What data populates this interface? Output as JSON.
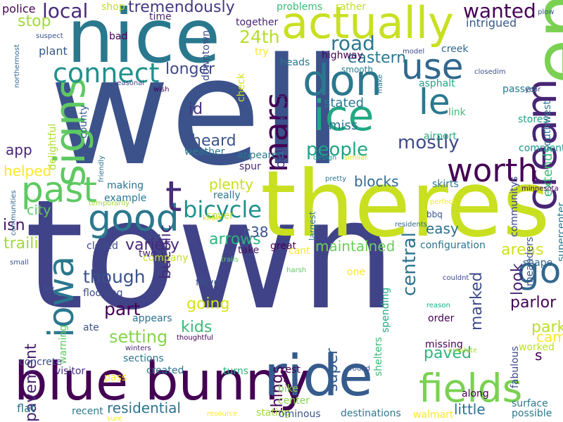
{
  "background": "#ffffff",
  "palette": [
    "#440154",
    "#472d7b",
    "#3b528b",
    "#2c728e",
    "#21918c",
    "#28ae80",
    "#5ec962",
    "#addc30",
    "#fde725"
  ],
  "words": [
    {
      "text": "well",
      "color": "#3b528b"
    },
    {
      "text": "town",
      "color": "#404387"
    },
    {
      "text": "theres",
      "color": "#c8e020"
    },
    {
      "text": "nice",
      "color": "#2a788e"
    },
    {
      "text": "end",
      "color": "#7ad151"
    },
    {
      "text": "blue bunny",
      "color": "#440154"
    },
    {
      "text": "ride",
      "color": "#365c8d"
    },
    {
      "text": "actually",
      "color": "#c8e020"
    },
    {
      "text": "don",
      "color": "#2a788e"
    },
    {
      "text": "ice",
      "color": "#22a884"
    },
    {
      "text": "cream",
      "color": "#482475"
    },
    {
      "text": "signs",
      "color": "#5ec962"
    },
    {
      "text": "fields",
      "color": "#7ad151"
    },
    {
      "text": "past",
      "color": "#5ec962"
    },
    {
      "text": "good",
      "color": "#2a788e"
    },
    {
      "text": "use",
      "color": "#31688e"
    },
    {
      "text": "le",
      "color": "#2a788e"
    },
    {
      "text": "go",
      "color": "#31688e"
    },
    {
      "text": "iowa",
      "color": "#2a788e"
    },
    {
      "text": "worth",
      "color": "#440154"
    },
    {
      "text": "mars",
      "color": "#440154"
    },
    {
      "text": "t",
      "color": "#472d7b"
    },
    {
      "text": "connect",
      "color": "#21918c"
    },
    {
      "text": "bicycle",
      "color": "#21918c"
    },
    {
      "text": "mostly",
      "color": "#3e4a89"
    },
    {
      "text": "people",
      "color": "#20a386"
    },
    {
      "text": "wanted",
      "color": "#440154"
    },
    {
      "text": "local",
      "color": "#482878"
    },
    {
      "text": "road",
      "color": "#2a788e"
    },
    {
      "text": "24th",
      "color": "#b5de2b"
    },
    {
      "text": "eastern",
      "color": "#2a788e"
    },
    {
      "text": "stop",
      "color": "#a2da37"
    },
    {
      "text": "longer",
      "color": "#3e4a89"
    },
    {
      "text": "id",
      "color": "#46327e"
    },
    {
      "text": "heard",
      "color": "#3b528b"
    },
    {
      "text": "plenty",
      "color": "#c8e020"
    },
    {
      "text": "arrows",
      "color": "#2db27d"
    },
    {
      "text": "c38",
      "color": "#3b528b"
    },
    {
      "text": "blocks",
      "color": "#31688e"
    },
    {
      "text": "maintained",
      "color": "#6ccd5a"
    },
    {
      "text": "traili",
      "color": "#a2da37"
    },
    {
      "text": "city",
      "color": "#5ec962"
    },
    {
      "text": "isn",
      "color": "#471063"
    },
    {
      "text": "variety",
      "color": "#482878"
    },
    {
      "text": "though",
      "color": "#3b528b"
    },
    {
      "text": "part",
      "color": "#440154"
    },
    {
      "text": "going",
      "color": "#d8e219"
    },
    {
      "text": "setting",
      "color": "#84d44b"
    },
    {
      "text": "kids",
      "color": "#3aba76"
    },
    {
      "text": "tremendously",
      "color": "#443983"
    },
    {
      "text": "central",
      "color": "#2c728e"
    },
    {
      "text": "marked",
      "color": "#3e4a89"
    },
    {
      "text": "look",
      "color": "#482475"
    },
    {
      "text": "parlor",
      "color": "#440154"
    },
    {
      "text": "areas",
      "color": "#d0e11c"
    },
    {
      "text": "paved",
      "color": "#2fb47c"
    },
    {
      "text": "parks",
      "color": "#bddf26"
    },
    {
      "text": "came",
      "color": "#fde725"
    },
    {
      "text": "easy",
      "color": "#2e6f8e"
    },
    {
      "text": "s",
      "color": "#440154"
    },
    {
      "text": "things",
      "color": "#440154"
    },
    {
      "text": "super",
      "color": "#365c8d"
    },
    {
      "text": "pavement",
      "color": "#482475"
    },
    {
      "text": "bucolic",
      "color": "#472c7a"
    },
    {
      "text": "helped",
      "color": "#fde725"
    },
    {
      "text": "app",
      "color": "#482475"
    },
    {
      "text": "ball",
      "color": "#46307e"
    },
    {
      "text": "stated",
      "color": "#2a788e"
    },
    {
      "text": "miss",
      "color": "#2c728e"
    },
    {
      "text": "extends",
      "color": "#3aba76"
    },
    {
      "text": "intrigued",
      "color": "#38598c"
    },
    {
      "text": "plant",
      "color": "#38598c"
    },
    {
      "text": "bad",
      "color": "#440154"
    },
    {
      "text": "time",
      "color": "#482475"
    },
    {
      "text": "police",
      "color": "#440154"
    },
    {
      "text": "shop",
      "color": "#bddf26"
    },
    {
      "text": "together",
      "color": "#482475"
    },
    {
      "text": "problems",
      "color": "#3aba76"
    },
    {
      "text": "rather",
      "color": "#bddf26"
    },
    {
      "text": "heads",
      "color": "#2a788e"
    },
    {
      "text": "highway",
      "color": "#440154"
    },
    {
      "text": "smooth",
      "color": "#287c8e"
    },
    {
      "text": "creek",
      "color": "#31688e"
    },
    {
      "text": "asphalt",
      "color": "#20a486"
    },
    {
      "text": "passes",
      "color": "#2a788e"
    },
    {
      "text": "link",
      "color": "#3aba76"
    },
    {
      "text": "stores",
      "color": "#20a486"
    },
    {
      "text": "airport",
      "color": "#29af7f"
    },
    {
      "text": "comment",
      "color": "#21918c"
    },
    {
      "text": "southwest",
      "color": "#2c728e"
    },
    {
      "text": "downtown",
      "color": "#3e4a89"
    },
    {
      "text": "try",
      "color": "#fde725"
    },
    {
      "text": "check",
      "color": "#d2e21b"
    },
    {
      "text": "employer",
      "color": "#3b528b"
    },
    {
      "text": "county",
      "color": "#365c8d"
    },
    {
      "text": "delightful",
      "color": "#addc30"
    },
    {
      "text": "weather",
      "color": "#2a788e"
    },
    {
      "text": "appeared",
      "color": "#2a788e"
    },
    {
      "text": "spur",
      "color": "#482878"
    },
    {
      "text": "making",
      "color": "#2c728e"
    },
    {
      "text": "example",
      "color": "#2a788e"
    },
    {
      "text": "really",
      "color": "#2a788e"
    },
    {
      "text": "cover",
      "color": "#bddf26"
    },
    {
      "text": "take",
      "color": "#471063"
    },
    {
      "text": "two",
      "color": "#482878"
    },
    {
      "text": "closed",
      "color": "#3e4a89"
    },
    {
      "text": "company",
      "color": "#c8e020"
    },
    {
      "text": "flooding",
      "color": "#3e4a89"
    },
    {
      "text": "appears",
      "color": "#2c728e"
    },
    {
      "text": "floyd",
      "color": "#3b528b"
    },
    {
      "text": "ate",
      "color": "#3b528b"
    },
    {
      "text": "warning",
      "color": "#5ec962"
    },
    {
      "text": "concrete",
      "color": "#3e4a89"
    },
    {
      "text": "visitor",
      "color": "#472c7a"
    },
    {
      "text": "sections",
      "color": "#2a788e"
    },
    {
      "text": "created",
      "color": "#2c728e"
    },
    {
      "text": "turns",
      "color": "#2db27d"
    },
    {
      "text": "rest",
      "color": "#440154"
    },
    {
      "text": "pass",
      "color": "#fde725"
    },
    {
      "text": "flat",
      "color": "#2c728e"
    },
    {
      "text": "recent",
      "color": "#2a788e"
    },
    {
      "text": "residential",
      "color": "#2c728e"
    },
    {
      "text": "bike",
      "color": "#84d44b"
    },
    {
      "text": "center",
      "color": "#84d44b"
    },
    {
      "text": "stating",
      "color": "#a2da37"
    },
    {
      "text": "ominous",
      "color": "#3b528b"
    },
    {
      "text": "destinations",
      "color": "#2a788e"
    },
    {
      "text": "walmart",
      "color": "#fde725"
    },
    {
      "text": "little",
      "color": "#2c728e"
    },
    {
      "text": "possible",
      "color": "#2a788e"
    },
    {
      "text": "surface",
      "color": "#2a788e"
    },
    {
      "text": "along",
      "color": "#440154"
    },
    {
      "text": "fabulous",
      "color": "#3e4a89"
    },
    {
      "text": "worked",
      "color": "#bddf26"
    },
    {
      "text": "missing",
      "color": "#440154"
    },
    {
      "text": "order",
      "color": "#440154"
    },
    {
      "text": "shape",
      "color": "#31688e"
    },
    {
      "text": "supercenter",
      "color": "#2a788e"
    },
    {
      "text": "meanders",
      "color": "#3b528b"
    },
    {
      "text": "configuration",
      "color": "#2c728e"
    },
    {
      "text": "communitys",
      "color": "#3e4a89"
    },
    {
      "text": "skirts",
      "color": "#2a788e"
    },
    {
      "text": "bbq",
      "color": "#3b528b"
    },
    {
      "text": "largest",
      "color": "#2a788e"
    },
    {
      "text": "great",
      "color": "#440154"
    },
    {
      "text": "cant",
      "color": "#fde725"
    },
    {
      "text": "one",
      "color": "#fde725"
    },
    {
      "text": "spending",
      "color": "#22a884"
    },
    {
      "text": "shelters",
      "color": "#3aba76"
    },
    {
      "text": "harsh",
      "color": "#5ec962"
    },
    {
      "text": "emulate",
      "color": "#addc30"
    },
    {
      "text": "round",
      "color": "#3b528b"
    },
    {
      "text": "reason",
      "color": "#22a884"
    },
    {
      "text": "couldnt",
      "color": "#3e4a89"
    },
    {
      "text": "residents",
      "color": "#31688e"
    },
    {
      "text": "perfect",
      "color": "#fde725"
    },
    {
      "text": "pretty",
      "color": "#2a788e"
    },
    {
      "text": "minnesota",
      "color": "#440154"
    },
    {
      "text": "design",
      "color": "#21918c"
    },
    {
      "text": "similar",
      "color": "#d8e219"
    },
    {
      "text": "friendly",
      "color": "#2c728e"
    },
    {
      "text": "temporarily",
      "color": "#a2da37"
    },
    {
      "text": "know",
      "color": "#d8e219"
    },
    {
      "text": "trails",
      "color": "#5ec962"
    },
    {
      "text": "winters",
      "color": "#482475"
    },
    {
      "text": "thoughtful",
      "color": "#440154"
    },
    {
      "text": "say",
      "color": "#3b528b"
    },
    {
      "text": "small",
      "color": "#3b528b"
    },
    {
      "text": "communities",
      "color": "#31688e"
    },
    {
      "text": "seasonal",
      "color": "#3e4a89"
    },
    {
      "text": "wish",
      "color": "#440154"
    },
    {
      "text": "suspect",
      "color": "#3b528b"
    },
    {
      "text": "northermost",
      "color": "#31688e"
    },
    {
      "text": "model",
      "color": "#3e4a89"
    },
    {
      "text": "plow",
      "color": "#3b528b"
    },
    {
      "text": "closedim",
      "color": "#3b528b"
    },
    {
      "text": "make",
      "color": "#2a788e"
    },
    {
      "text": "year",
      "color": "#3e4a89"
    },
    {
      "text": "sure",
      "color": "#fde725"
    },
    {
      "text": "resource",
      "color": "#fde725"
    }
  ]
}
